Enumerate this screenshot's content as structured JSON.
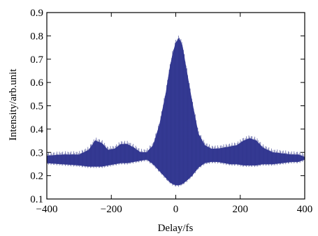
{
  "chart_data": {
    "type": "line",
    "title": "",
    "xlabel": "Delay/fs",
    "ylabel": "Intensity/arb.unit",
    "xlim": [
      -400,
      400
    ],
    "ylim": [
      0.1,
      0.9
    ],
    "x_ticks": [
      "-400",
      "-200",
      "0",
      "200",
      "400"
    ],
    "y_ticks": [
      "0.1",
      "0.2",
      "0.3",
      "0.4",
      "0.5",
      "0.6",
      "0.7",
      "0.8",
      "0.9"
    ],
    "grid": false,
    "legend": "none",
    "series": [
      {
        "name": "",
        "color": "#3a3f9a",
        "x": [
          -400,
          -350,
          -300,
          -270,
          -250,
          -230,
          -210,
          -190,
          -170,
          -150,
          -130,
          -110,
          -90,
          -70,
          -50,
          -30,
          -20,
          -10,
          0,
          10,
          20,
          30,
          50,
          70,
          90,
          110,
          130,
          150,
          170,
          190,
          210,
          230,
          250,
          270,
          300,
          330,
          360,
          380,
          400
        ],
        "upper": [
          0.285,
          0.29,
          0.29,
          0.31,
          0.35,
          0.34,
          0.31,
          0.315,
          0.335,
          0.335,
          0.32,
          0.3,
          0.3,
          0.33,
          0.42,
          0.56,
          0.65,
          0.72,
          0.77,
          0.79,
          0.76,
          0.68,
          0.52,
          0.38,
          0.33,
          0.315,
          0.315,
          0.32,
          0.325,
          0.33,
          0.35,
          0.36,
          0.35,
          0.32,
          0.3,
          0.295,
          0.29,
          0.29,
          0.28
        ],
        "lower": [
          0.255,
          0.25,
          0.245,
          0.24,
          0.24,
          0.24,
          0.245,
          0.25,
          0.255,
          0.255,
          0.26,
          0.265,
          0.27,
          0.25,
          0.22,
          0.19,
          0.175,
          0.165,
          0.16,
          0.16,
          0.165,
          0.175,
          0.2,
          0.235,
          0.255,
          0.26,
          0.26,
          0.255,
          0.25,
          0.25,
          0.245,
          0.245,
          0.245,
          0.25,
          0.25,
          0.255,
          0.26,
          0.26,
          0.27
        ]
      }
    ]
  }
}
